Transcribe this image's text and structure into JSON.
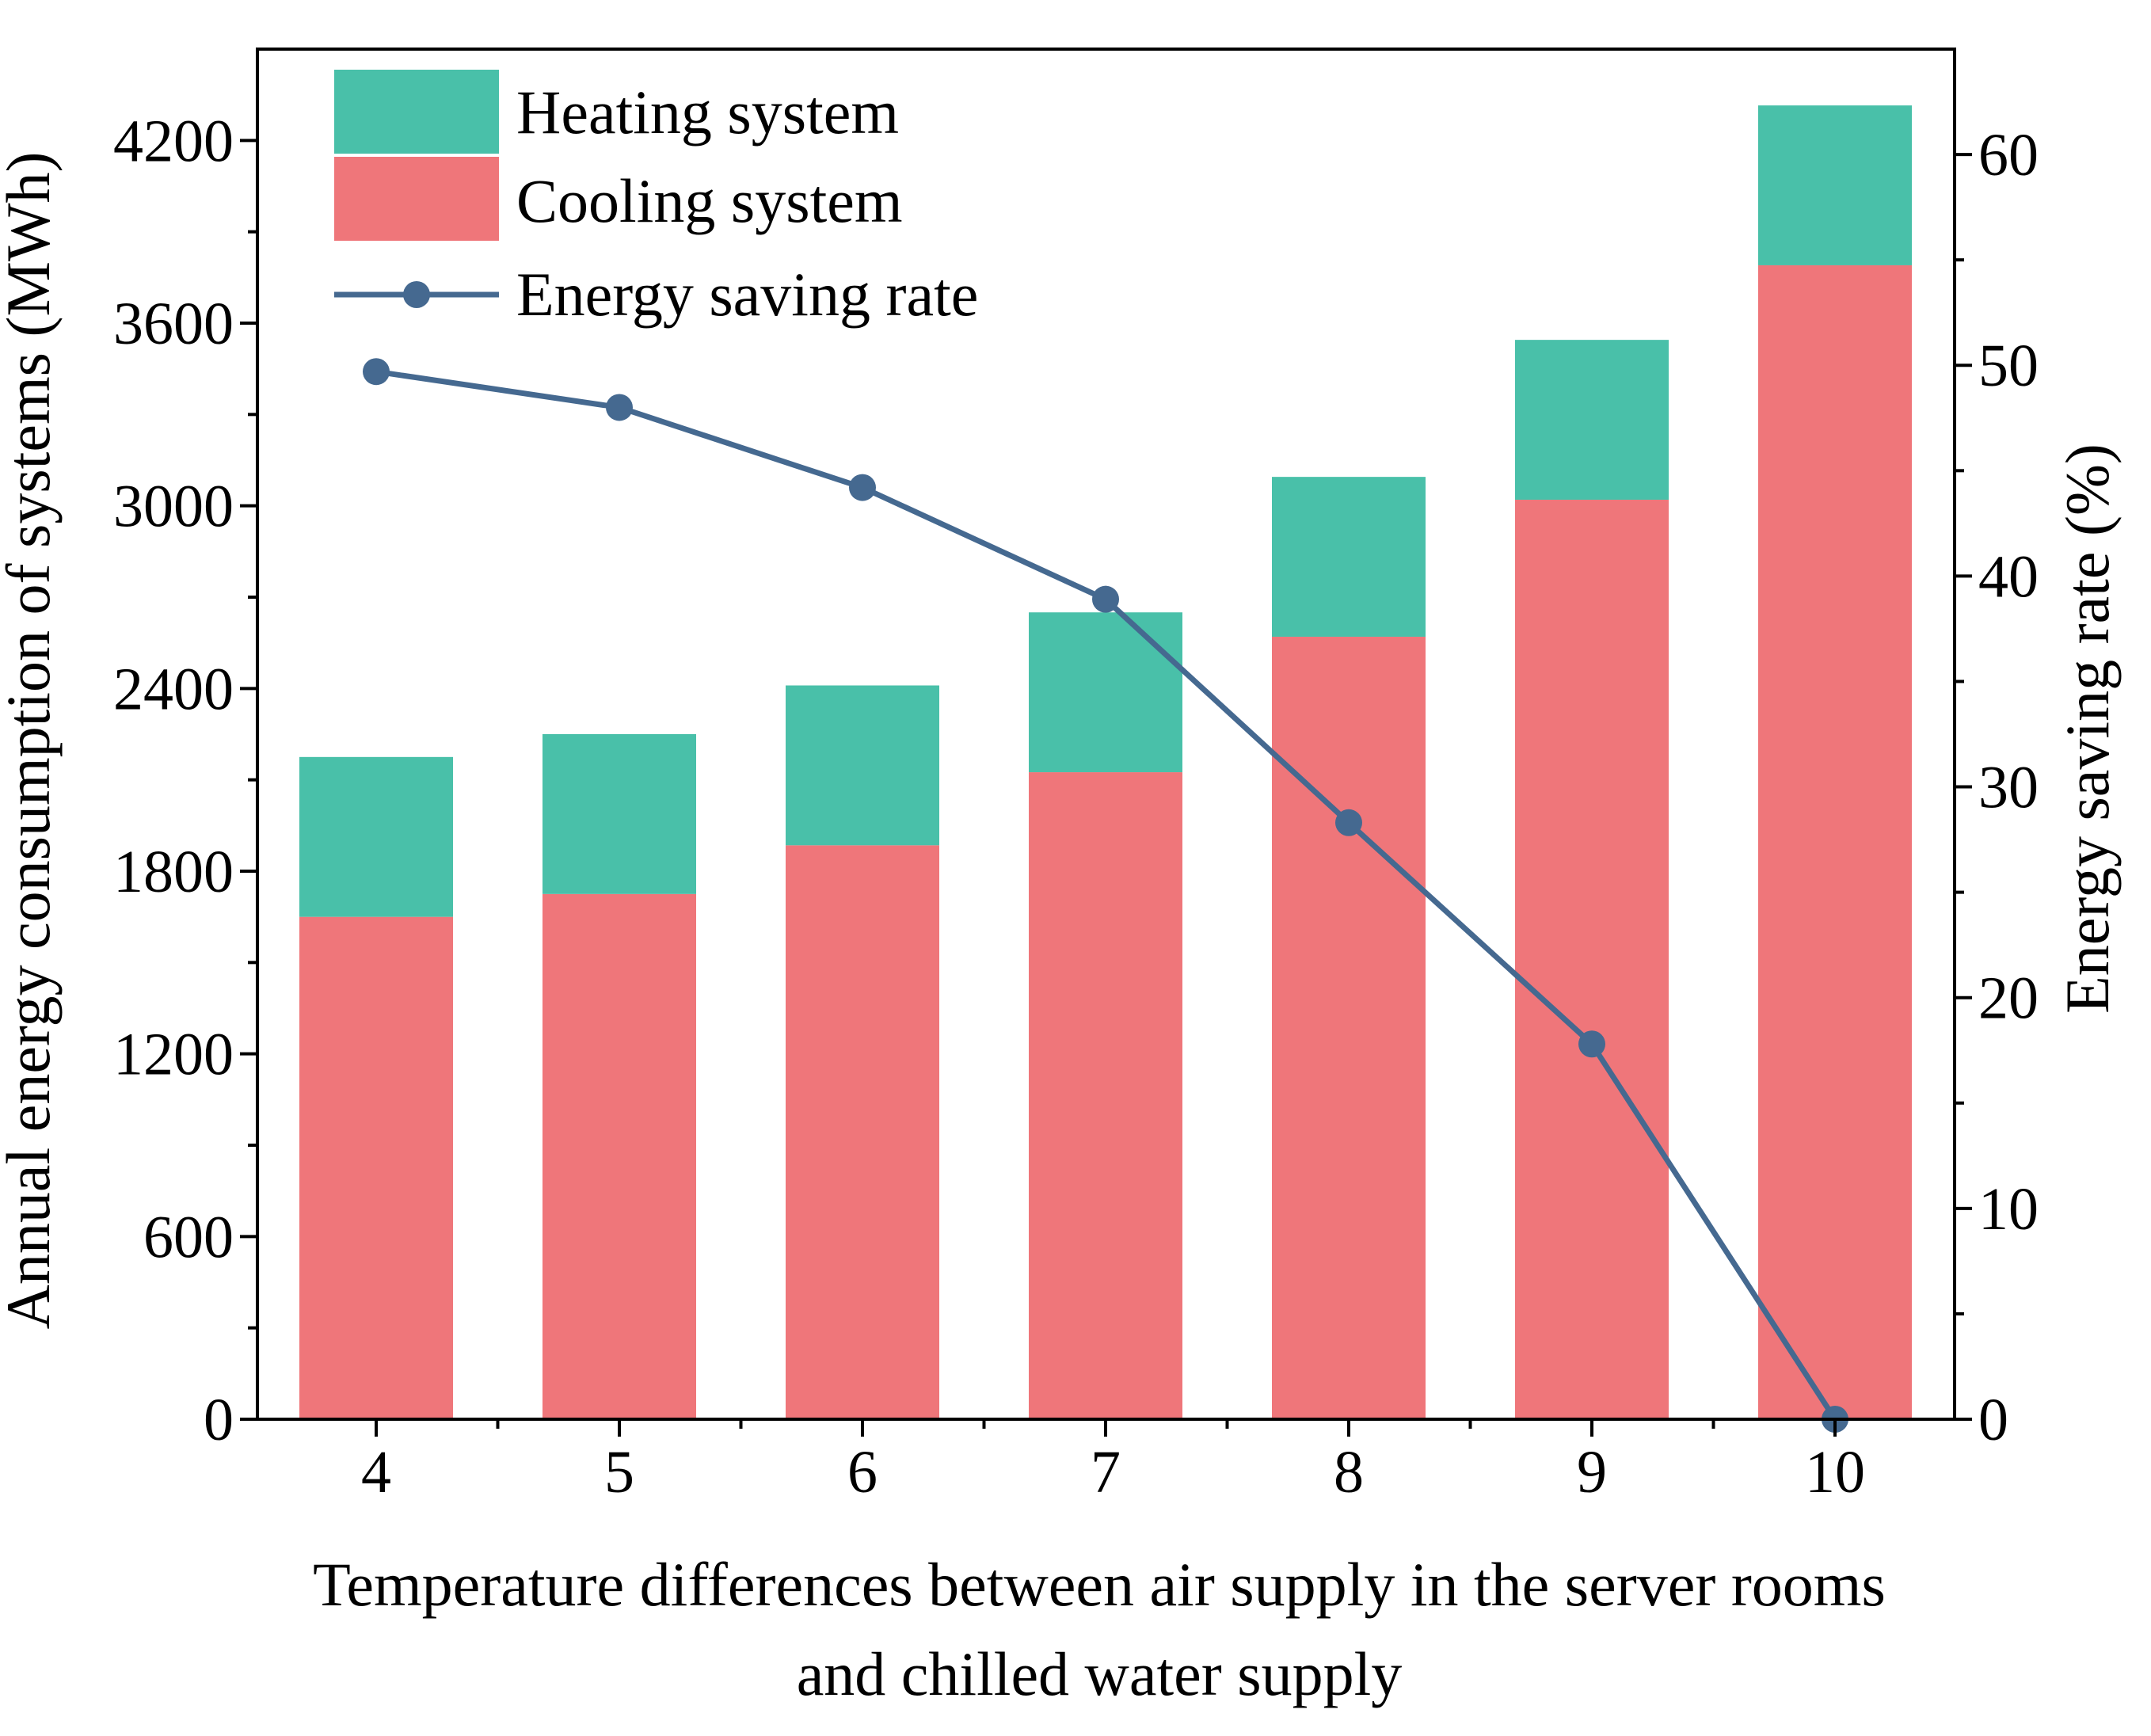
{
  "chart_data": {
    "type": "bar",
    "stacked": true,
    "categories": [
      "4",
      "5",
      "6",
      "7",
      "8",
      "9",
      "10"
    ],
    "series": [
      {
        "name": "Cooling system",
        "kind": "bar",
        "axis": "left",
        "color": "#EF767A",
        "values": [
          1650,
          1725,
          1885,
          2125,
          2570,
          3020,
          3790
        ]
      },
      {
        "name": "Heating system",
        "kind": "bar",
        "axis": "left",
        "color": "#49C0A9",
        "values": [
          525,
          525,
          525,
          525,
          525,
          525,
          525
        ]
      },
      {
        "name": "Energy saving rate",
        "kind": "line",
        "axis": "right",
        "color": "#456990",
        "marker": "circle",
        "values": [
          49.7,
          48.0,
          44.2,
          38.9,
          28.3,
          17.8,
          0
        ]
      }
    ],
    "xlabel_lines": [
      "Temperature differences between air supply in the server rooms",
      "and chilled water supply"
    ],
    "ylabel": "Annual energy consumption of systems (MWh)",
    "ylabel_right": "Energy saving rate (%)",
    "ylim": [
      0,
      4500
    ],
    "ylim_right": [
      0,
      65
    ],
    "yticks": [
      0,
      600,
      1200,
      1800,
      2400,
      3000,
      3600,
      4200
    ],
    "yticks_right": [
      0,
      10,
      20,
      30,
      40,
      50,
      60
    ],
    "legend_order": [
      "Heating system",
      "Cooling system",
      "Energy saving rate"
    ],
    "legend_position": "top-left",
    "grid": false
  }
}
